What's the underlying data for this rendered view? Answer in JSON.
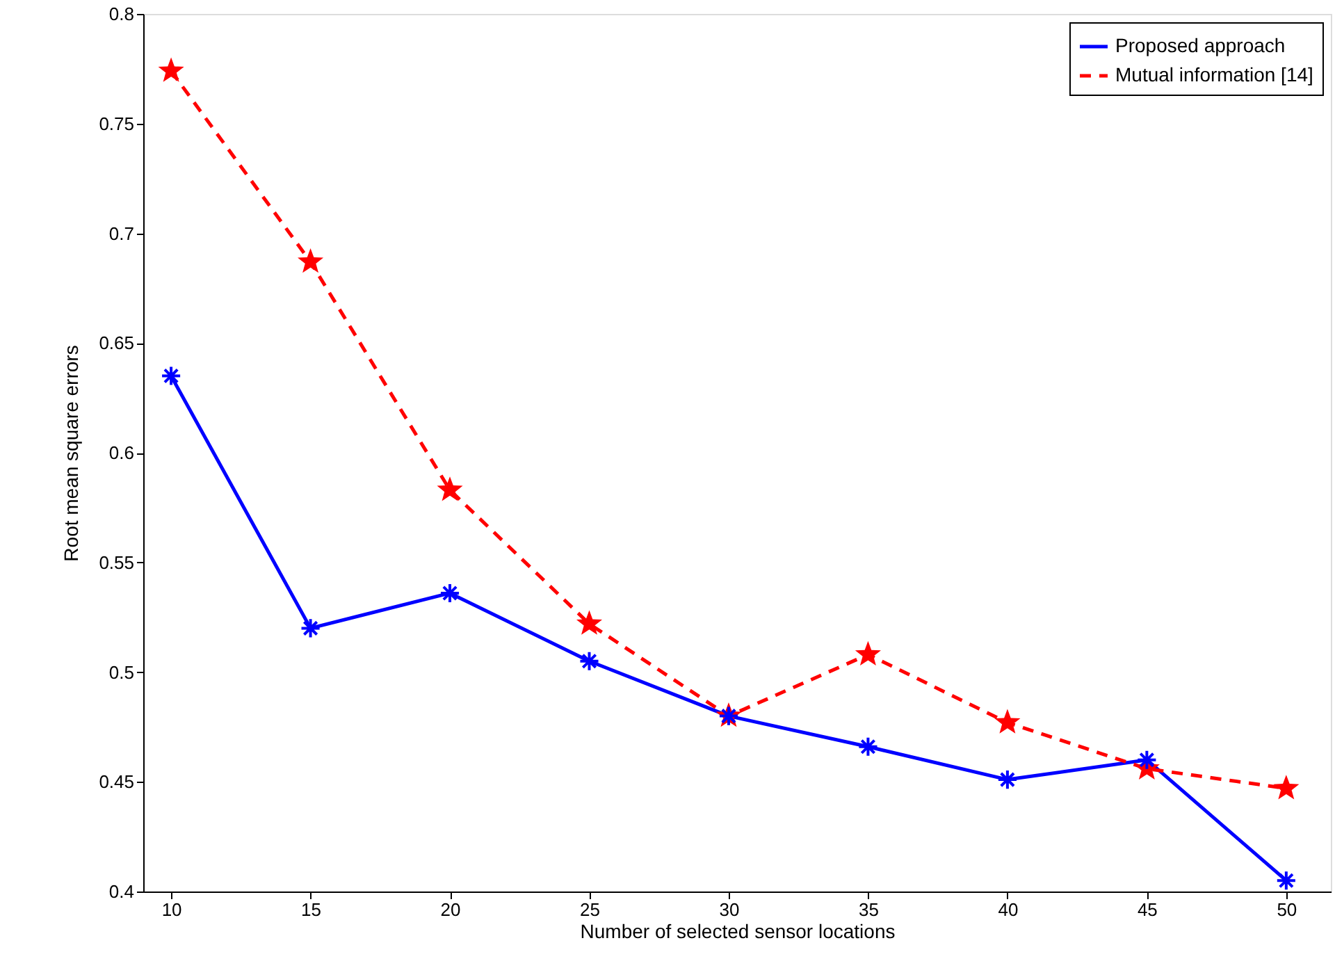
{
  "chart_data": {
    "type": "line",
    "xlabel": "Number of selected sensor locations",
    "ylabel": "Root mean square errors",
    "x": [
      10,
      15,
      20,
      25,
      30,
      35,
      40,
      45,
      50
    ],
    "series": [
      {
        "name": "Proposed approach",
        "color": "#0000ff",
        "marker": "cross",
        "line_style": "solid",
        "values": [
          0.635,
          0.52,
          0.536,
          0.505,
          0.48,
          0.466,
          0.451,
          0.46,
          0.405
        ]
      },
      {
        "name": "Mutual information [14]",
        "color": "#ff0000",
        "marker": "star",
        "line_style": "dashed",
        "values": [
          0.774,
          0.687,
          0.583,
          0.522,
          0.48,
          0.508,
          0.477,
          0.456,
          0.447
        ]
      }
    ],
    "xlim": [
      9,
      51.6
    ],
    "xticks": [
      10,
      15,
      20,
      25,
      30,
      35,
      40,
      45,
      50
    ],
    "ylim": [
      0.4,
      0.8
    ],
    "yticks": [
      0.4,
      0.45,
      0.5,
      0.55,
      0.6,
      0.65,
      0.7,
      0.75,
      0.8
    ],
    "grid": false,
    "legend": "top right"
  }
}
